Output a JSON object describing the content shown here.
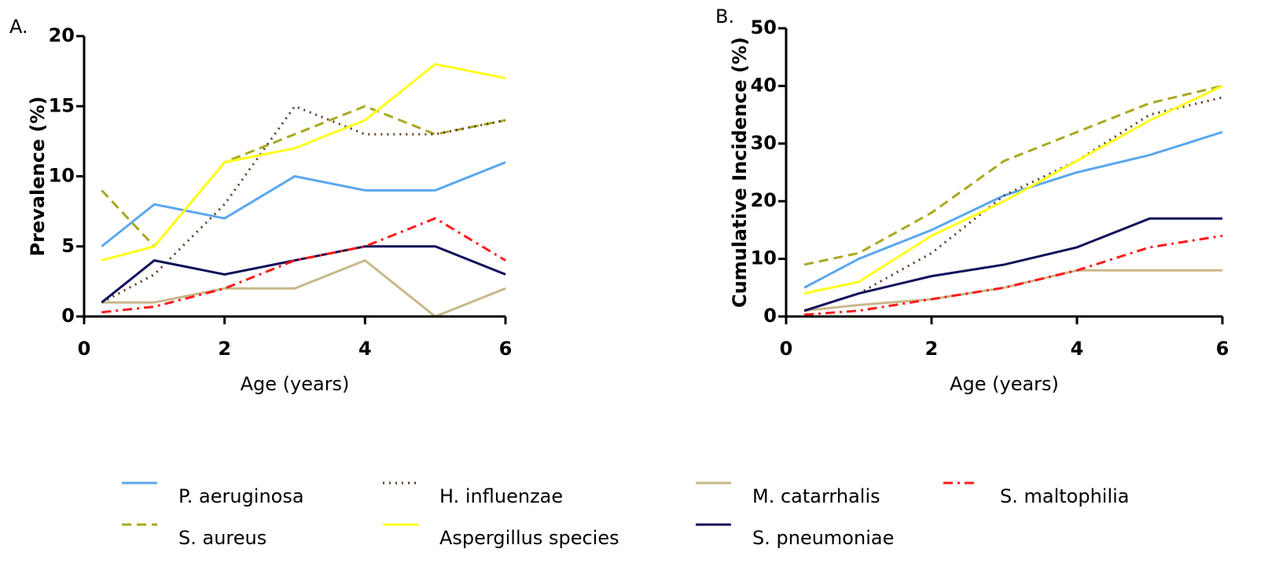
{
  "chart_data": [
    {
      "type": "line",
      "label": "A.",
      "x_label": "Age (years)",
      "y_label": "Prevalence (%)",
      "xlim": [
        0,
        6
      ],
      "xticks": [
        0,
        2,
        4,
        6
      ],
      "ylim": [
        0,
        20
      ],
      "yticks": [
        0,
        5,
        10,
        15,
        20
      ],
      "x": [
        0.25,
        1,
        2,
        3,
        4,
        5,
        6
      ],
      "series": [
        {
          "name": "P. aeruginosa",
          "color": "#5aa7ee",
          "dash": "solid",
          "values": [
            5,
            8,
            7,
            10,
            9,
            9,
            11
          ]
        },
        {
          "name": "S. aureus",
          "color": "#a9a820",
          "dash": "dashed",
          "values": [
            9,
            5,
            11,
            13,
            15,
            13,
            14
          ]
        },
        {
          "name": "H. influenzae",
          "color": "#5b3a22",
          "dash": "dotted",
          "values": [
            1,
            3,
            8,
            15,
            13,
            13,
            14
          ]
        },
        {
          "name": "Aspergillus species",
          "color": "#ffff1a",
          "dash": "solid",
          "values": [
            4,
            5,
            11,
            12,
            14,
            18,
            17
          ]
        },
        {
          "name": "M. catarrhalis",
          "color": "#c8b88a",
          "dash": "solid",
          "values": [
            1,
            1,
            2,
            2,
            4,
            0,
            2
          ]
        },
        {
          "name": "S. pneumoniae",
          "color": "#0f0f5a",
          "dash": "solid",
          "values": [
            1,
            4,
            3,
            4,
            5,
            5,
            3
          ]
        },
        {
          "name": "S. maltophilia",
          "color": "#ff1a1a",
          "dash": "dashdot",
          "values": [
            0.3,
            0.7,
            2,
            4,
            5,
            7,
            4
          ]
        }
      ]
    },
    {
      "type": "line",
      "label": "B.",
      "x_label": "Age (years)",
      "y_label": "Cumulative Incidence (%)",
      "xlim": [
        0,
        6
      ],
      "xticks": [
        0,
        2,
        4,
        6
      ],
      "ylim": [
        0,
        50
      ],
      "yticks": [
        0,
        10,
        20,
        30,
        40,
        50
      ],
      "x": [
        0.25,
        1,
        2,
        3,
        4,
        5,
        6
      ],
      "series": [
        {
          "color": "#5aa7ee",
          "dash": "solid",
          "values": [
            5,
            10,
            15,
            21,
            25,
            28,
            32
          ]
        },
        {
          "color": "#a9a820",
          "dash": "dashed",
          "values": [
            9,
            11,
            18,
            27,
            32,
            37,
            40
          ]
        },
        {
          "color": "#5b3a22",
          "dash": "dotted",
          "values": [
            1,
            4,
            11,
            21,
            27,
            35,
            38
          ]
        },
        {
          "color": "#ffff1a",
          "dash": "solid",
          "values": [
            4,
            6,
            14,
            20,
            27,
            34,
            40
          ]
        },
        {
          "color": "#c8b88a",
          "dash": "solid",
          "values": [
            1,
            2,
            3,
            5,
            8,
            8,
            8
          ]
        },
        {
          "color": "#0f0f5a",
          "dash": "solid",
          "values": [
            1,
            4,
            7,
            9,
            12,
            17,
            17
          ]
        },
        {
          "color": "#ff1a1a",
          "dash": "dashdot",
          "values": [
            0.3,
            1,
            3,
            5,
            8,
            12,
            14
          ]
        }
      ]
    }
  ]
}
